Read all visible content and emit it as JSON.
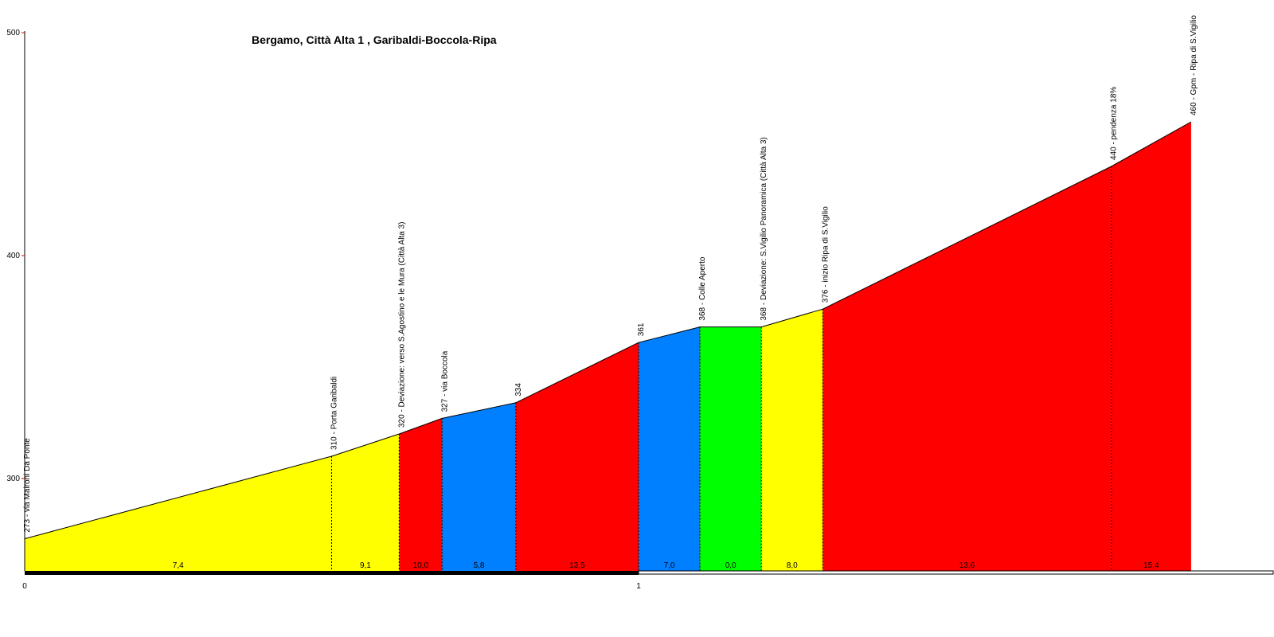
{
  "chart_data": {
    "type": "area",
    "title": "Bergamo, Città Alta 1 , Garibaldi-Boccola-Ripa",
    "xlabel": "",
    "ylabel": "",
    "ylim": [
      258,
      500
    ],
    "xlim": [
      0,
      2
    ],
    "y_ticks": [
      "300",
      "400",
      "500"
    ],
    "y_tick_values": [
      300,
      400,
      500
    ],
    "x_ticks": [
      "0",
      "1"
    ],
    "x_tick_values": [
      0,
      1
    ],
    "grid": false,
    "points": [
      {
        "x": 0.0,
        "y": 273,
        "label": "273 - via Maironi Da Ponte"
      },
      {
        "x": 0.5,
        "y": 310,
        "label": "310 - Porta Garibaldi"
      },
      {
        "x": 0.61,
        "y": 320,
        "label": "320 - Deviazione: verso S.Agostino e le Mura (Città Alta 3)"
      },
      {
        "x": 0.68,
        "y": 327,
        "label": "327 - via Boccola"
      },
      {
        "x": 0.8,
        "y": 334,
        "label": "334"
      },
      {
        "x": 1.0,
        "y": 361,
        "label": "361"
      },
      {
        "x": 1.1,
        "y": 368,
        "label": "368 - Colle Aperto"
      },
      {
        "x": 1.2,
        "y": 368,
        "label": "368 - Deviazione: S.Vigilio Panoramica (Città Alta 3)"
      },
      {
        "x": 1.3,
        "y": 376,
        "label": "376 - inizio Ripa di S.Vigilio"
      },
      {
        "x": 1.77,
        "y": 440,
        "label": "440 - pendenza 18%"
      },
      {
        "x": 1.9,
        "y": 460,
        "label": "460 - Gpm - Ripa di S.Vigilio"
      }
    ],
    "segments": [
      {
        "gradient": "7,4",
        "color": "#ffff00"
      },
      {
        "gradient": "9,1",
        "color": "#ffff00"
      },
      {
        "gradient": "10,0",
        "color": "#ff0000"
      },
      {
        "gradient": "5,8",
        "color": "#0080ff"
      },
      {
        "gradient": "13,5",
        "color": "#ff0000"
      },
      {
        "gradient": "7,0",
        "color": "#0080ff"
      },
      {
        "gradient": "0,0",
        "color": "#00ff00"
      },
      {
        "gradient": "8,0",
        "color": "#ffff00"
      },
      {
        "gradient": "13,6",
        "color": "#ff0000"
      },
      {
        "gradient": "15,4",
        "color": "#ff0000"
      }
    ],
    "colors": {
      "axis": "#000000",
      "tick_mark": "#cc0000",
      "outline": "#000000"
    }
  }
}
